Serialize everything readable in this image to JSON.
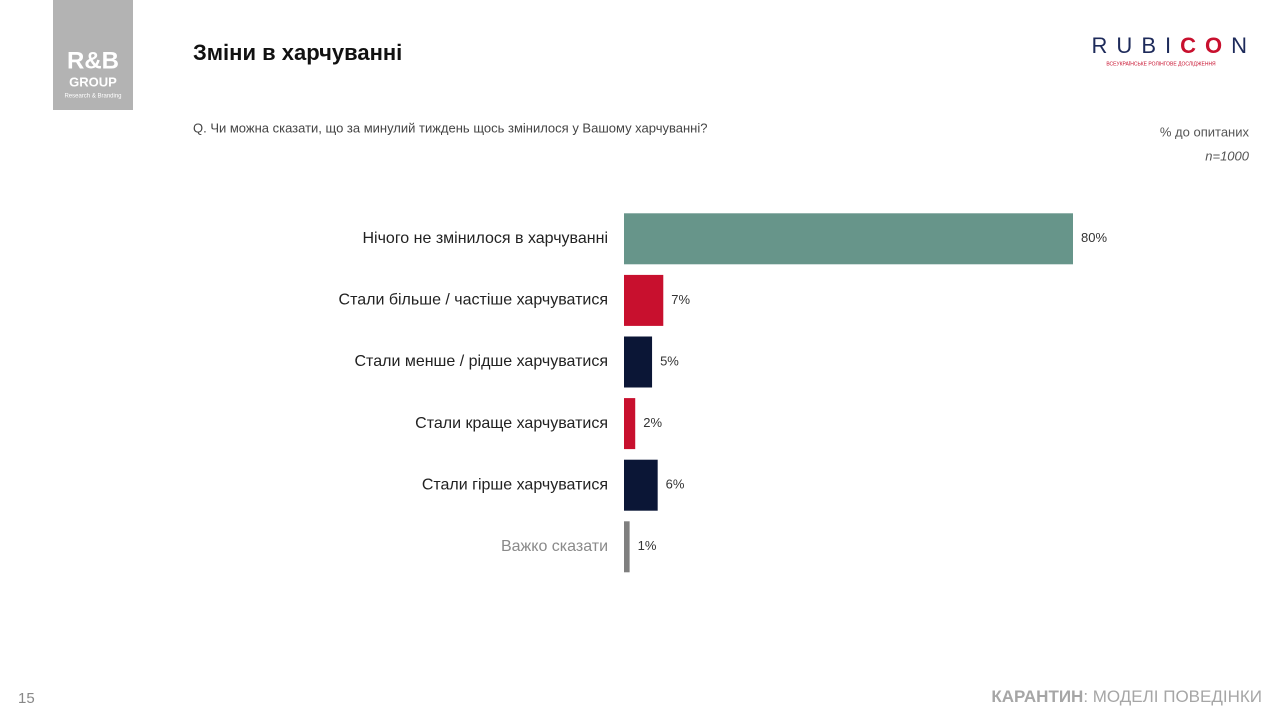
{
  "logo": {
    "name": "R&B",
    "sub": "GROUP",
    "tagline": "Research & Branding"
  },
  "header": {
    "title": "Зміни в харчуванні"
  },
  "brand": {
    "parts": [
      "RUBI",
      "CO",
      "N"
    ],
    "tagline": "ВСЕУКРАЇНСЬКЕ РОЛІНГОВЕ ДОСЛІДЖЕННЯ"
  },
  "chart_data": {
    "type": "bar",
    "subtitle": "Q. Чи можна сказати, що за минулий тиждень щось змінилося у Вашому харчуванні?",
    "note": "% до опитаних",
    "sample": "n=1000",
    "categories": [
      "Нічого не змінилося в харчуванні",
      "Стали більше / частіше харчуватися",
      "Стали менше / рідше харчуватися",
      "Стали краще харчуватися",
      "Стали гірше харчуватися",
      "Важко сказати"
    ],
    "values": [
      80,
      7,
      5,
      2,
      6,
      1
    ],
    "value_labels": [
      "80%",
      "7%",
      "5%",
      "2%",
      "6%",
      "1%"
    ],
    "colors": [
      "#67958a",
      "#c8102e",
      "#0b1636",
      "#c8102e",
      "#0b1636",
      "#7f7f7f"
    ],
    "label_colors": [
      "#222222",
      "#222222",
      "#222222",
      "#222222",
      "#222222",
      "#8a8a8a"
    ],
    "xlim": [
      0,
      80
    ]
  },
  "footer": {
    "page": "15",
    "bold": "КАРАНТИН",
    "rest": ": МОДЕЛІ ПОВЕДІНКИ"
  }
}
